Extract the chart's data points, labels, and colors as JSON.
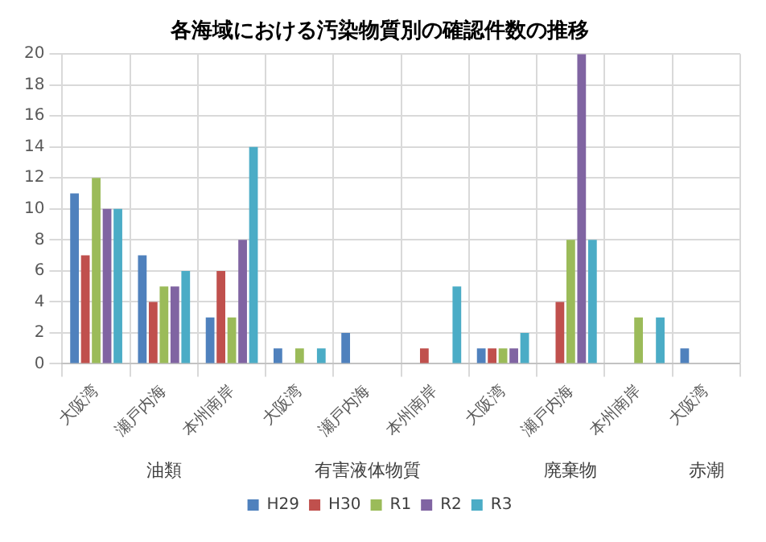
{
  "chart_data": {
    "type": "bar",
    "title": "各海域における汚染物質別の確認件数の推移",
    "categories": [
      "大阪湾",
      "瀬戸内海",
      "本州南岸",
      "大阪湾",
      "瀬戸内海",
      "本州南岸",
      "大阪湾",
      "瀬戸内海",
      "本州南岸",
      "大阪湾"
    ],
    "annotations": [
      "油類",
      "有害液体物質",
      "廃棄物",
      "赤潮"
    ],
    "series": [
      {
        "name": "H29",
        "color": "#4f81bd",
        "values": [
          11,
          7,
          3,
          1,
          2,
          null,
          1,
          null,
          null,
          1
        ]
      },
      {
        "name": "H30",
        "color": "#c0504d",
        "values": [
          7,
          4,
          6,
          null,
          null,
          1,
          1,
          4,
          null,
          null
        ]
      },
      {
        "name": "R1",
        "color": "#9bbb59",
        "values": [
          12,
          5,
          3,
          1,
          null,
          null,
          1,
          8,
          3,
          null
        ]
      },
      {
        "name": "R2",
        "color": "#8064a2",
        "values": [
          10,
          5,
          8,
          null,
          null,
          null,
          1,
          20,
          null,
          null
        ]
      },
      {
        "name": "R3",
        "color": "#4bacc6",
        "values": [
          10,
          6,
          14,
          1,
          null,
          5,
          2,
          8,
          3,
          null
        ]
      }
    ],
    "ylim": [
      0,
      20
    ],
    "yticks": [
      0,
      2,
      4,
      6,
      8,
      10,
      12,
      14,
      16,
      18,
      20
    ],
    "grid": true,
    "legend": "bottom"
  }
}
